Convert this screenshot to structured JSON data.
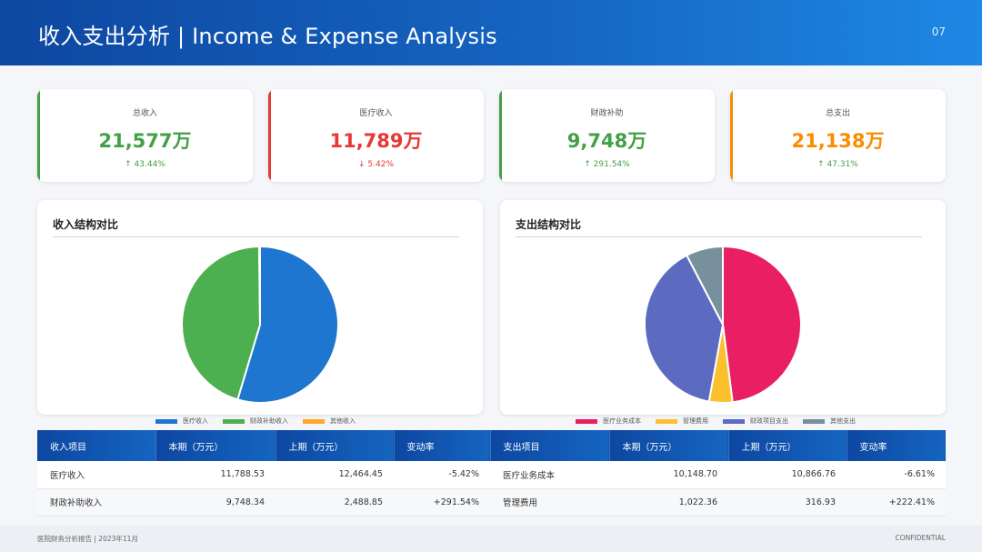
{
  "header": {
    "title": "收入支出分析 | Income & Expense Analysis",
    "page": "07"
  },
  "kpis": [
    {
      "label": "总收入",
      "value": "21,577万",
      "change": "↑ 43.44%",
      "accent": "#43a047",
      "change_color": "#43a047"
    },
    {
      "label": "医疗收入",
      "value": "11,789万",
      "change": "↓ 5.42%",
      "accent": "#e53935",
      "change_color": "#e53935"
    },
    {
      "label": "财政补助",
      "value": "9,748万",
      "change": "↑ 291.54%",
      "accent": "#43a047",
      "change_color": "#43a047"
    },
    {
      "label": "总支出",
      "value": "21,138万",
      "change": "↑ 47.31%",
      "accent": "#fb8c00",
      "change_color": "#43a047"
    }
  ],
  "charts": {
    "income": {
      "title": "收入结构对比"
    },
    "expense": {
      "title": "支出结构对比"
    }
  },
  "chart_data": [
    {
      "type": "pie",
      "title": "收入结构对比",
      "categories": [
        "医疗收入",
        "财政补助收入",
        "其他收入"
      ],
      "values": [
        11788.53,
        9748.34,
        40
      ],
      "colors": [
        "#1e76d0",
        "#4caf50",
        "#ffa726"
      ],
      "legend": "bottom"
    },
    {
      "type": "pie",
      "title": "支出结构对比",
      "categories": [
        "医疗业务成本",
        "管理费用",
        "财政项目支出",
        "其他支出"
      ],
      "values": [
        10148.7,
        1022.36,
        8350,
        1617
      ],
      "colors": [
        "#e91e63",
        "#fbc02d",
        "#5c6bc0",
        "#78909c"
      ],
      "legend": "bottom"
    }
  ],
  "table": {
    "headers": [
      "收入项目",
      "本期（万元）",
      "上期（万元）",
      "变动率",
      "支出项目",
      "本期（万元）",
      "上期（万元）",
      "变动率"
    ],
    "rows": [
      [
        "医疗收入",
        "11,788.53",
        "12,464.45",
        "-5.42%",
        "医疗业务成本",
        "10,148.70",
        "10,866.76",
        "-6.61%"
      ],
      [
        "财政补助收入",
        "9,748.34",
        "2,488.85",
        "+291.54%",
        "管理费用",
        "1,022.36",
        "316.93",
        "+222.41%"
      ]
    ]
  },
  "footer": {
    "left": "医院财务分析报告 | 2023年11月",
    "right": "CONFIDENTIAL"
  }
}
